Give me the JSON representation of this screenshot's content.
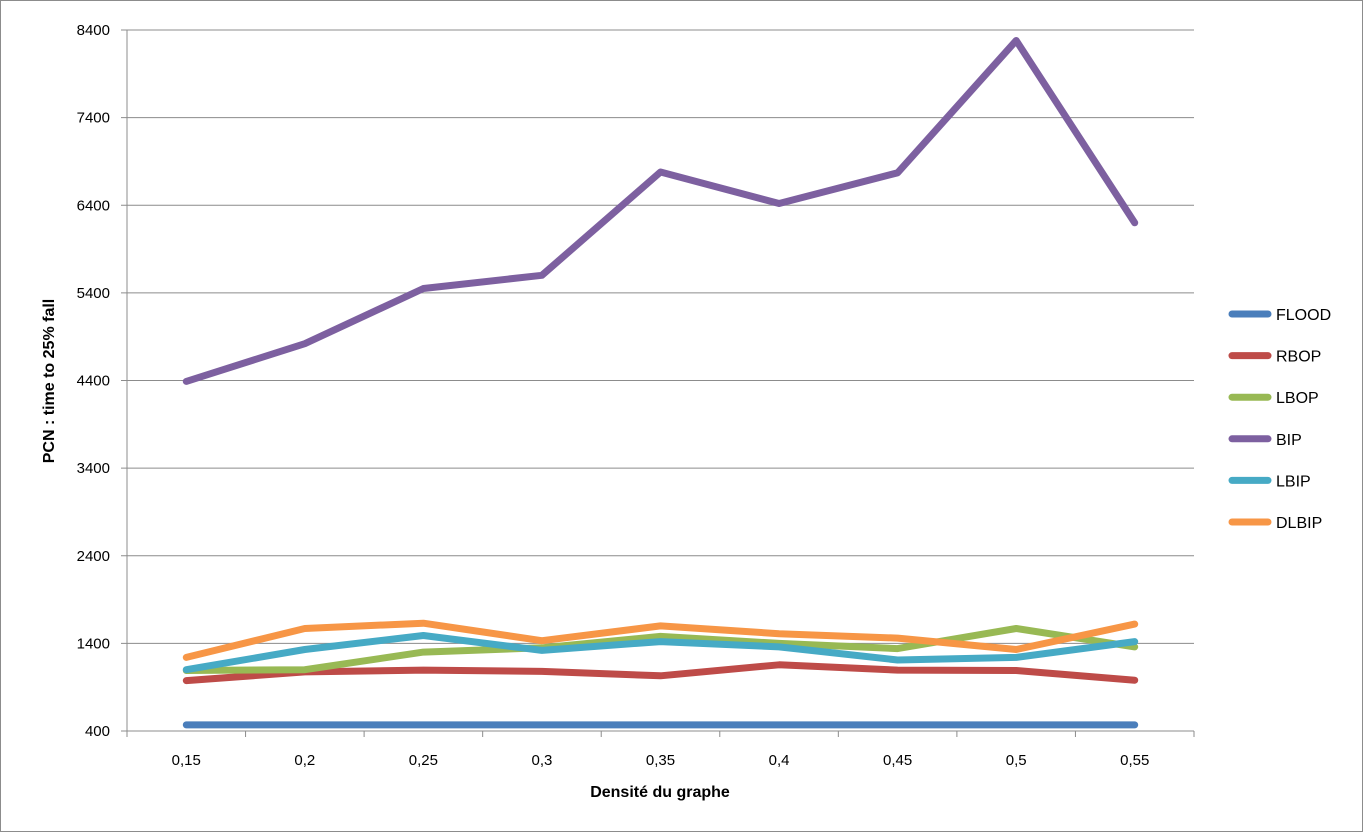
{
  "chart_data": {
    "type": "line",
    "title": "",
    "xlabel": "Densité du graphe",
    "ylabel": "PCN : time to 25% fall",
    "categories": [
      "0,15",
      "0,2",
      "0,25",
      "0,3",
      "0,35",
      "0,4",
      "0,45",
      "0,5",
      "0,55"
    ],
    "ylim": [
      400,
      8400
    ],
    "yticks": [
      "400",
      "1400",
      "2400",
      "3400",
      "4400",
      "5400",
      "6400",
      "7400",
      "8400"
    ],
    "grid": "horizontal",
    "legend_position": "right",
    "series": [
      {
        "name": "FLOOD",
        "color": "#4a7ebb",
        "values": [
          470,
          470,
          470,
          470,
          470,
          470,
          470,
          470,
          470
        ]
      },
      {
        "name": "RBOP",
        "color": "#be4b48",
        "values": [
          975,
          1075,
          1095,
          1080,
          1030,
          1155,
          1095,
          1090,
          980
        ]
      },
      {
        "name": "LBOP",
        "color": "#98b954",
        "values": [
          1090,
          1100,
          1300,
          1350,
          1480,
          1400,
          1340,
          1570,
          1360
        ]
      },
      {
        "name": "BIP",
        "color": "#7d60a0",
        "values": [
          4390,
          4820,
          5450,
          5600,
          6780,
          6420,
          6770,
          8280,
          6200
        ]
      },
      {
        "name": "LBIP",
        "color": "#46aac5",
        "values": [
          1100,
          1330,
          1490,
          1320,
          1420,
          1360,
          1210,
          1240,
          1420
        ]
      },
      {
        "name": "DLBIP",
        "color": "#f79646",
        "values": [
          1240,
          1570,
          1630,
          1430,
          1600,
          1510,
          1460,
          1330,
          1620
        ]
      }
    ]
  }
}
